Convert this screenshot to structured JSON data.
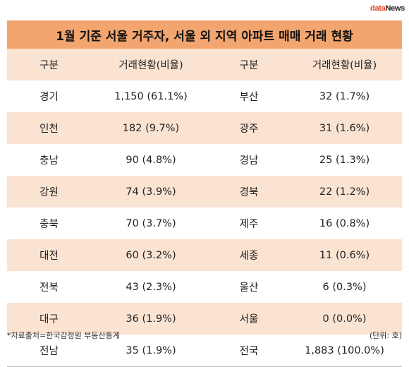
{
  "logo": {
    "part1": "data",
    "part2": "News"
  },
  "title": "1월 기준 서울 거주자, 서울 외 지역 아파트 매매 거래 현황",
  "headers": [
    "구분",
    "거래현황(비율)",
    "구분",
    "거래현황(비율)"
  ],
  "rows": [
    [
      "경기",
      "1,150 (61.1%)",
      "부산",
      "32 (1.7%)"
    ],
    [
      "인천",
      "182 (9.7%)",
      "광주",
      "31 (1.6%)"
    ],
    [
      "충남",
      "90 (4.8%)",
      "경남",
      "25 (1.3%)"
    ],
    [
      "강원",
      "74 (3.9%)",
      "경북",
      "22 (1.2%)"
    ],
    [
      "충북",
      "70 (3.7%)",
      "제주",
      "16 (0.8%)"
    ],
    [
      "대전",
      "60 (3.2%)",
      "세종",
      "11 (0.6%)"
    ],
    [
      "전북",
      "43 (2.3%)",
      "울산",
      "6 (0.3%)"
    ],
    [
      "대구",
      "36 (1.9%)",
      "서울",
      "0 (0.0%)"
    ],
    [
      "전남",
      "35 (1.9%)",
      "전국",
      "1,883 (100.0%)"
    ]
  ],
  "footer": {
    "source": "*자료출처=한국감정원 부동산통계",
    "unit": "(단위: 호)"
  }
}
